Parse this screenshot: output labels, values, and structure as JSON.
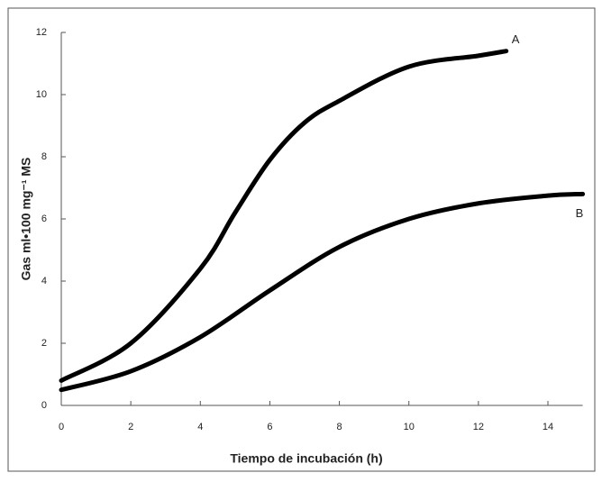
{
  "chart_data": {
    "type": "line",
    "xlabel": "Tiempo de incubación (h)",
    "ylabel": "Gas ml•100 mg⁻¹ MS",
    "xlim": [
      0,
      15
    ],
    "xticks": [
      0,
      2,
      4,
      6,
      8,
      10,
      12,
      14
    ],
    "ylim": [
      0,
      12
    ],
    "yticks": [
      0,
      2,
      4,
      6,
      8,
      10,
      12
    ],
    "series": [
      {
        "name": "A",
        "color": "#000000",
        "x": [
          0,
          2,
          4,
          5,
          6,
          7,
          8,
          10,
          12,
          12.8
        ],
        "values": [
          0.8,
          2.0,
          4.4,
          6.2,
          7.9,
          9.1,
          9.8,
          10.9,
          11.25,
          11.4
        ]
      },
      {
        "name": "B",
        "color": "#000000",
        "x": [
          0,
          2,
          4,
          6,
          8,
          10,
          12,
          14,
          15
        ],
        "values": [
          0.5,
          1.1,
          2.2,
          3.7,
          5.1,
          6.0,
          6.5,
          6.75,
          6.8
        ]
      }
    ]
  }
}
